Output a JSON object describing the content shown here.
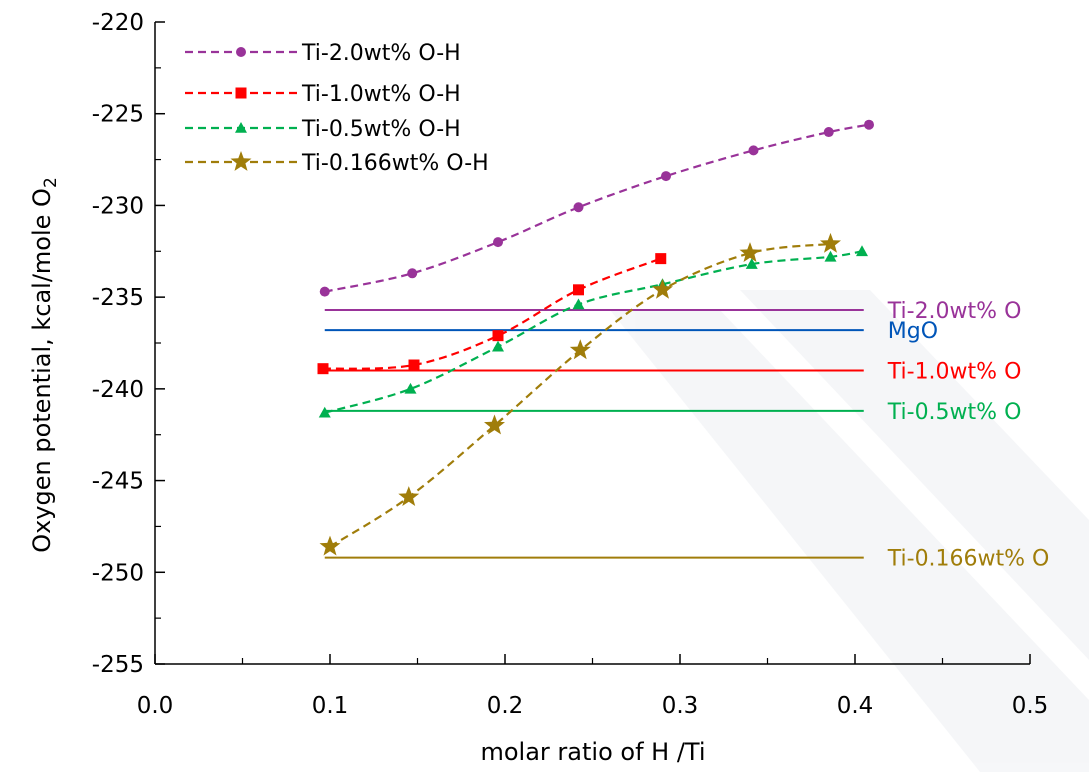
{
  "chart_data": {
    "type": "line",
    "xlabel": "molar ratio of H /Ti",
    "ylabel": "Oxygen potential, kcal/mole O",
    "ylabel_subscript": "2",
    "xlim": [
      0.0,
      0.5
    ],
    "ylim": [
      -255,
      -220
    ],
    "xticks": [
      "0.0",
      "0.1",
      "0.2",
      "0.3",
      "0.4",
      "0.5"
    ],
    "yticks": [
      "-220",
      "-225",
      "-230",
      "-235",
      "-240",
      "-245",
      "-250",
      "-255"
    ],
    "grid": false,
    "legend_position": "top-left",
    "series": [
      {
        "name": "Ti-2.0wt% O-H",
        "color": "#993399",
        "marker": "circle",
        "x": [
          0.097,
          0.147,
          0.196,
          0.242,
          0.292,
          0.342,
          0.385,
          0.408
        ],
        "y": [
          -234.7,
          -233.7,
          -232.0,
          -230.1,
          -228.4,
          -227.0,
          -226.0,
          -225.6
        ]
      },
      {
        "name": "Ti-1.0wt% O-H",
        "color": "#ff0000",
        "marker": "square",
        "x": [
          0.096,
          0.148,
          0.196,
          0.242,
          0.289
        ],
        "y": [
          -238.9,
          -238.7,
          -237.1,
          -234.6,
          -232.9
        ]
      },
      {
        "name": "Ti-0.5wt% O-H",
        "color": "#00b050",
        "marker": "triangle",
        "x": [
          0.097,
          0.146,
          0.196,
          0.242,
          0.29,
          0.341,
          0.386,
          0.404
        ],
        "y": [
          -241.3,
          -240.0,
          -237.7,
          -235.4,
          -234.3,
          -233.2,
          -232.8,
          -232.5
        ]
      },
      {
        "name": "Ti-0.166wt% O-H",
        "color": "#a07d0a",
        "marker": "star",
        "x": [
          0.1,
          0.145,
          0.194,
          0.243,
          0.29,
          0.34,
          0.386
        ],
        "y": [
          -248.6,
          -245.9,
          -242.0,
          -237.9,
          -234.6,
          -232.6,
          -232.1
        ]
      }
    ],
    "reference_lines": [
      {
        "label": "Ti-2.0wt% O",
        "color": "#993399",
        "y": -235.7,
        "x_start": 0.097,
        "x_end": 0.405
      },
      {
        "label": "MgO",
        "color": "#0055b8",
        "y": -236.8,
        "x_start": 0.097,
        "x_end": 0.405
      },
      {
        "label": "Ti-1.0wt% O",
        "color": "#ff0000",
        "y": -239.0,
        "x_start": 0.097,
        "x_end": 0.405
      },
      {
        "label": "Ti-0.5wt% O",
        "color": "#00b050",
        "y": -241.2,
        "x_start": 0.097,
        "x_end": 0.405
      },
      {
        "label": "Ti-0.166wt% O",
        "color": "#a07d0a",
        "y": -249.2,
        "x_start": 0.097,
        "x_end": 0.405
      }
    ]
  }
}
